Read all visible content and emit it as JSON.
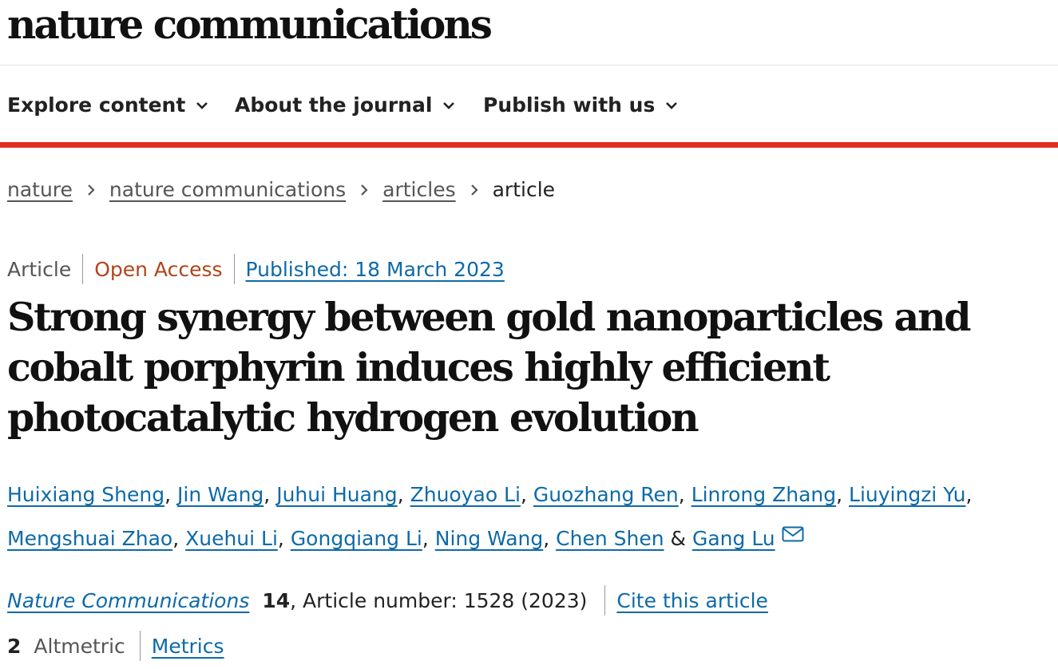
{
  "masthead": {
    "logo_text": "nature communications"
  },
  "nav": {
    "items": [
      {
        "label": "Explore content"
      },
      {
        "label": "About the journal"
      },
      {
        "label": "Publish with us"
      }
    ]
  },
  "breadcrumb": {
    "items": [
      "nature",
      "nature communications",
      "articles"
    ],
    "current": "article"
  },
  "article_meta": {
    "type": "Article",
    "access": "Open Access",
    "published": "Published: 18 March 2023"
  },
  "title": "Strong synergy between gold nanoparticles and cobalt porphyrin induces highly efficient photocatalytic hydrogen evolution",
  "authors": [
    "Huixiang Sheng",
    "Jin Wang",
    "Juhui Huang",
    "Zhuoyao Li",
    "Guozhang Ren",
    "Linrong Zhang",
    "Liuyingzi Yu",
    "Mengshuai Zhao",
    "Xuehui Li",
    "Gongqiang Li",
    "Ning Wang",
    "Chen Shen",
    "Gang Lu"
  ],
  "authors_separator": ", ",
  "authors_last_joiner": " & ",
  "citation": {
    "journal": "Nature Communications",
    "volume": "14",
    "article_number": ", Article number: 1528 (2023)",
    "cite_label": "Cite this article"
  },
  "metrics": {
    "altmetric_count": "2",
    "altmetric_label": "Altmetric",
    "metrics_label": "Metrics"
  },
  "colors": {
    "accent_red": "#e0301e",
    "link_blue": "#0d6aa8",
    "open_access": "#b0451b"
  },
  "icons": {
    "nav_chevron": "chevron-down-icon",
    "breadcrumb_separator": "chevron-right-icon",
    "corresponding_author": "envelope-icon"
  }
}
